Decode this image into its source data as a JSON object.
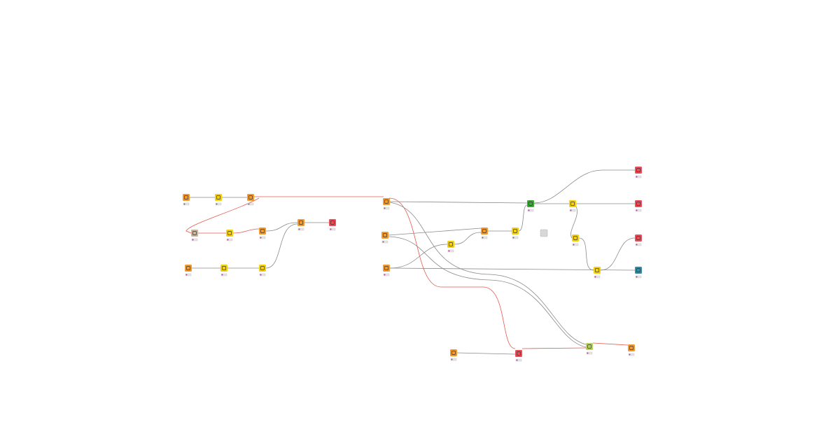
{
  "nodes": [
    {
      "color": "#f39a2b"
    },
    {
      "color": "#f5d10a"
    },
    {
      "color": "#f39a2b"
    },
    {
      "color": "#c9b59a"
    },
    {
      "color": "#f5d10a"
    },
    {
      "color": "#f39a2b"
    },
    {
      "color": "#f39a2b"
    },
    {
      "color": "#ef4c5a"
    },
    {
      "color": "#f39a2b"
    },
    {
      "color": "#f5d10a"
    },
    {
      "color": "#f5d10a"
    },
    {
      "color": "#f39a2b"
    },
    {
      "color": "#f39a2b"
    },
    {
      "color": "#f39a2b"
    },
    {
      "color": "#f5d10a"
    },
    {
      "color": "#f39a2b"
    },
    {
      "color": "#f5d10a"
    },
    {
      "color": "#d8d8d8"
    },
    {
      "color": "#3aaa35"
    },
    {
      "color": "#f5d10a"
    },
    {
      "color": "#ef4c5a"
    },
    {
      "color": "#ef4c5a"
    },
    {
      "color": "#f5d10a"
    },
    {
      "color": "#ef4c5a"
    },
    {
      "color": "#f5d10a"
    },
    {
      "color": "#2f8fa5"
    },
    {
      "color": "#b5d35b"
    },
    {
      "color": "#f39a2b"
    },
    {
      "color": "#f39a2b"
    },
    {
      "color": "#ef4c5a"
    }
  ]
}
